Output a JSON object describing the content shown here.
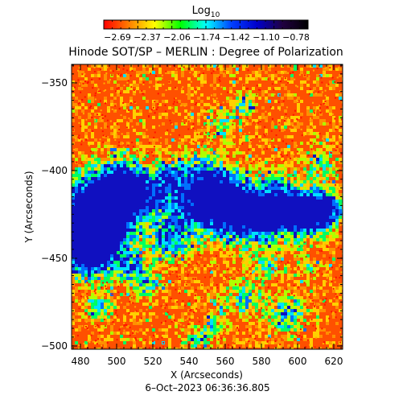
{
  "colorbar": {
    "title_main": "Log",
    "title_sub": "10",
    "ticks": [
      "-2.69",
      "-2.37",
      "-2.06",
      "-1.74",
      "-1.42",
      "-1.10",
      "-0.78"
    ],
    "colors": [
      "#ff0000",
      "#ff8000",
      "#ffff00",
      "#00ff00",
      "#00ffff",
      "#0040ff",
      "#0000cc",
      "#200040",
      "#000000"
    ]
  },
  "plot": {
    "title": "Hinode SOT/SP – MERLIN : Degree of Polarization",
    "xlabel": "X (Arcseconds)",
    "ylabel": "Y (Arcseconds)",
    "xticks": [
      "480",
      "500",
      "520",
      "540",
      "560",
      "580",
      "600",
      "620"
    ],
    "yticks": [
      "−350",
      "−400",
      "−450",
      "−500"
    ],
    "timestamp": "6–Oct–2023 06:36:36.805"
  }
}
